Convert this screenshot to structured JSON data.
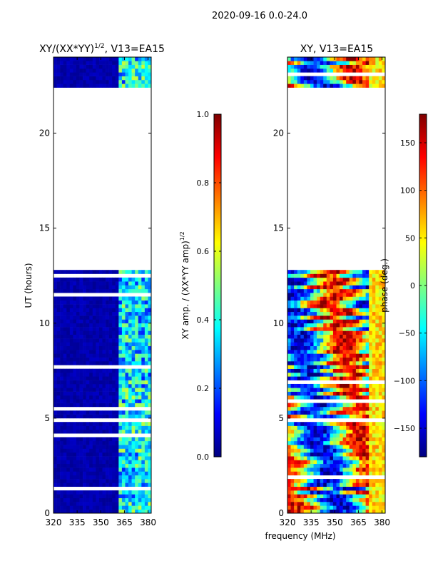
{
  "figure": {
    "suptitle": "2020-09-16 0.0-24.0",
    "shared_xlabel": "frequency (MHz)"
  },
  "chart_data": [
    {
      "type": "heatmap",
      "title_main": "XY/(XX*YY)",
      "title_sup": "1/2",
      "title_tail": ", V13=EA15",
      "xlabel": "",
      "ylabel": "UT (hours)",
      "xlim": [
        320,
        382
      ],
      "ylim": [
        0,
        24
      ],
      "xticks": [
        320,
        335,
        350,
        365,
        380
      ],
      "yticks": [
        0,
        5,
        10,
        15,
        20
      ],
      "data_gap_hours": [
        12.8,
        22.4
      ],
      "colorbar": {
        "label_main": "XY amp. / (XX*YY amp)",
        "label_sup": "1/2",
        "range": [
          0.0,
          1.0
        ],
        "ticks": [
          0.0,
          0.2,
          0.4,
          0.6,
          0.8,
          1.0
        ],
        "tick_labels": [
          "0.0",
          "0.2",
          "0.4",
          "0.6",
          "0.8",
          "1.0"
        ],
        "colormap": "jet"
      }
    },
    {
      "type": "heatmap",
      "title": "XY, V13=EA15",
      "xlabel": "frequency (MHz)",
      "ylabel": "",
      "xlim": [
        320,
        382
      ],
      "ylim": [
        0,
        24
      ],
      "xticks": [
        320,
        335,
        350,
        365,
        380
      ],
      "yticks": [
        0,
        5,
        10,
        15,
        20
      ],
      "data_gap_hours": [
        12.8,
        22.4
      ],
      "colorbar": {
        "label": "phase (deg.)",
        "range": [
          -180,
          180
        ],
        "ticks": [
          -150,
          -100,
          -50,
          0,
          50,
          100,
          150
        ],
        "tick_labels": [
          "−150",
          "−100",
          "−50",
          "0",
          "50",
          "100",
          "150"
        ],
        "colormap": "jet"
      }
    }
  ],
  "colors": {
    "jet": [
      "#00007f",
      "#0000ff",
      "#007fff",
      "#00ffff",
      "#7fff7f",
      "#ffff00",
      "#ff7f00",
      "#ff0000",
      "#7f0000"
    ],
    "axis": "#000000",
    "background": "#ffffff"
  }
}
